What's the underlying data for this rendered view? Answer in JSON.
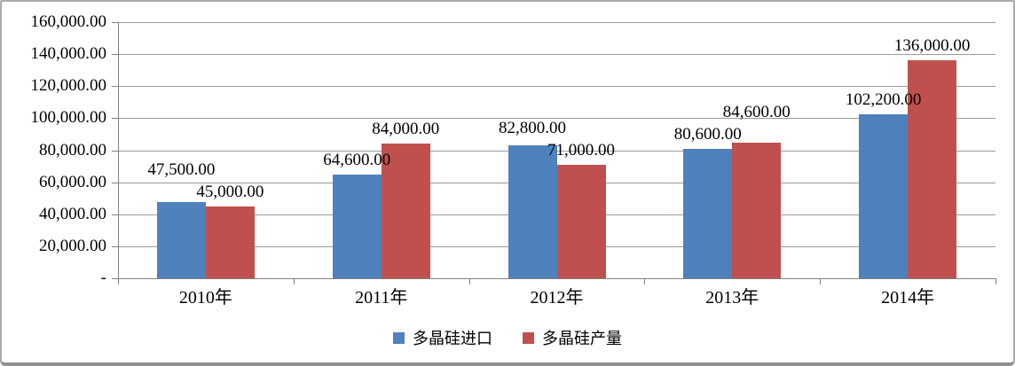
{
  "chart_data": {
    "type": "bar",
    "categories": [
      "2010年",
      "2011年",
      "2012年",
      "2013年",
      "2014年"
    ],
    "series": [
      {
        "name": "多晶硅进口",
        "color": "#4F81BD",
        "values": [
          47500,
          64600,
          82800,
          80600,
          102200
        ],
        "labels": [
          "47,500.00",
          "64,600.00",
          "82,800.00",
          "80,600.00",
          "102,200.00"
        ]
      },
      {
        "name": "多晶硅产量",
        "color": "#C0504D",
        "values": [
          45000,
          84000,
          71000,
          84600,
          136000
        ],
        "labels": [
          "45,000.00",
          "84,000.00",
          "71,000.00",
          "84,600.00",
          "136,000.00"
        ]
      }
    ],
    "title": "",
    "xlabel": "",
    "ylabel": "",
    "ylim": [
      0,
      160000
    ],
    "ytick_step": 20000,
    "ytick_labels": [
      "-",
      "20,000.00",
      "40,000.00",
      "60,000.00",
      "80,000.00",
      "100,000.00",
      "120,000.00",
      "140,000.00",
      "160,000.00"
    ],
    "grid": true,
    "legend_position": "bottom",
    "gridline_color": "#9B9B9B",
    "axis_color": "#808080",
    "text_color": "#000000"
  }
}
